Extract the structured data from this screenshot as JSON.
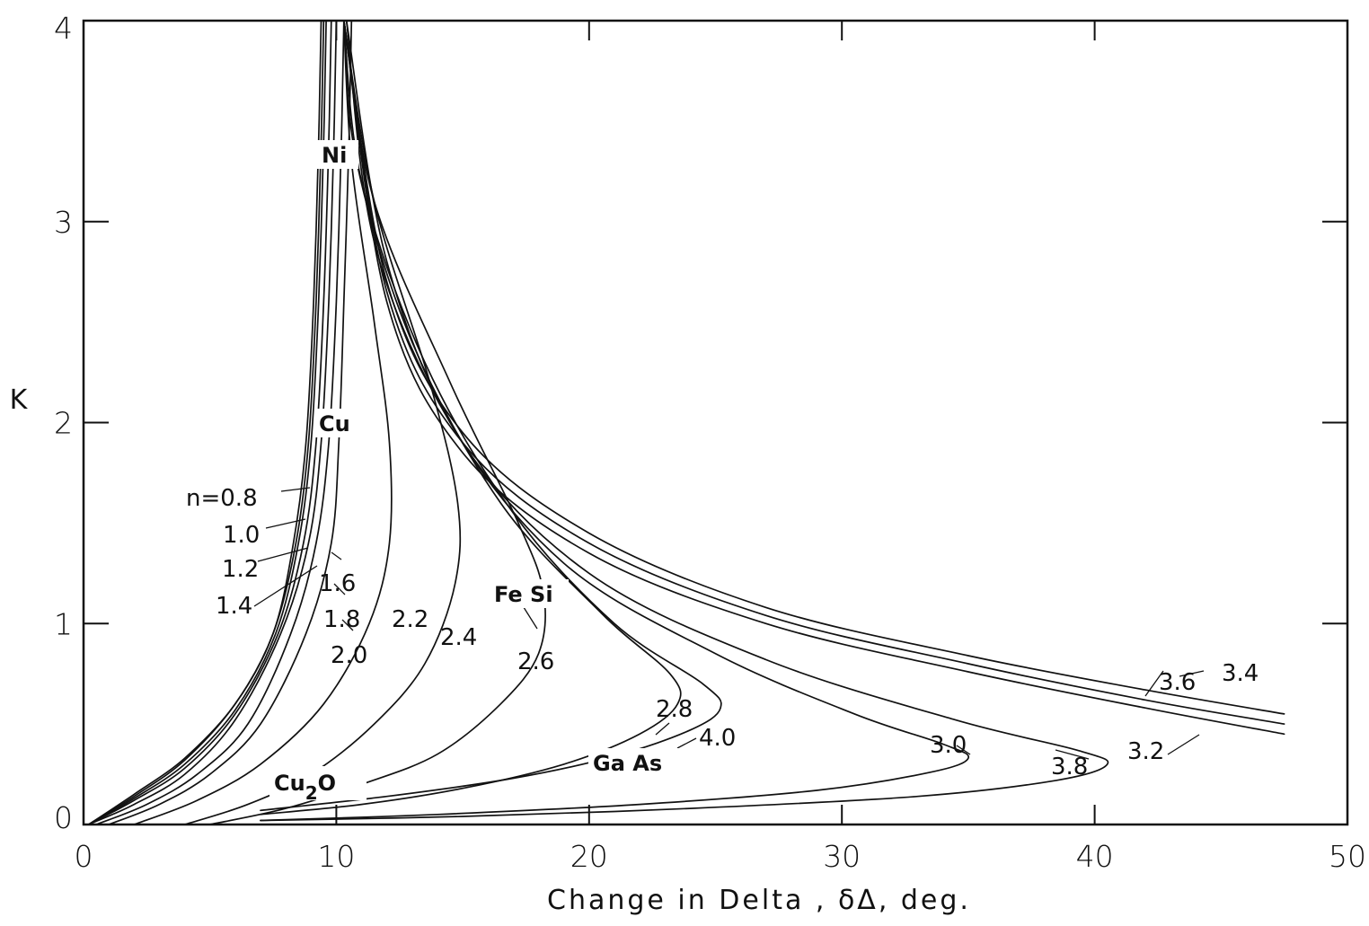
{
  "chart_data": {
    "type": "line",
    "title": "",
    "xlabel": "Change in Delta , δΔ, deg.",
    "ylabel": "K",
    "xlim": [
      0,
      50
    ],
    "ylim": [
      0,
      4
    ],
    "xticks": [
      "0",
      "10",
      "20",
      "30",
      "40",
      "50"
    ],
    "yticks": [
      "0",
      "1",
      "2",
      "3",
      "4"
    ],
    "grid": false,
    "legend": "none",
    "series": [
      {
        "name": "n=0.8",
        "points": [
          [
            0.2,
            0.0
          ],
          [
            2,
            0.15
          ],
          [
            4,
            0.33
          ],
          [
            6,
            0.6
          ],
          [
            7.5,
            0.95
          ],
          [
            8.3,
            1.4
          ],
          [
            8.8,
            1.9
          ],
          [
            9.1,
            2.6
          ],
          [
            9.3,
            3.4
          ],
          [
            9.4,
            4.0
          ]
        ]
      },
      {
        "name": "1.0",
        "points": [
          [
            0.2,
            0.0
          ],
          [
            2,
            0.14
          ],
          [
            4,
            0.32
          ],
          [
            6,
            0.6
          ],
          [
            7.5,
            0.95
          ],
          [
            8.4,
            1.4
          ],
          [
            8.9,
            1.9
          ],
          [
            9.2,
            2.6
          ],
          [
            9.4,
            3.4
          ],
          [
            9.5,
            4.0
          ]
        ]
      },
      {
        "name": "1.2",
        "points": [
          [
            0.2,
            0.0
          ],
          [
            2,
            0.13
          ],
          [
            4,
            0.3
          ],
          [
            6,
            0.57
          ],
          [
            7.6,
            0.95
          ],
          [
            8.5,
            1.4
          ],
          [
            9.0,
            1.9
          ],
          [
            9.3,
            2.6
          ],
          [
            9.5,
            3.4
          ],
          [
            9.6,
            4.0
          ]
        ]
      },
      {
        "name": "1.4",
        "points": [
          [
            0.2,
            0.0
          ],
          [
            2,
            0.12
          ],
          [
            4,
            0.28
          ],
          [
            6,
            0.55
          ],
          [
            7.7,
            0.95
          ],
          [
            8.7,
            1.4
          ],
          [
            9.2,
            1.9
          ],
          [
            9.5,
            2.6
          ],
          [
            9.7,
            3.4
          ],
          [
            9.8,
            4.0
          ]
        ]
      },
      {
        "name": "1.6",
        "points": [
          [
            0.2,
            0.0
          ],
          [
            2,
            0.1
          ],
          [
            4,
            0.25
          ],
          [
            6,
            0.52
          ],
          [
            7.8,
            0.95
          ],
          [
            8.9,
            1.4
          ],
          [
            9.4,
            1.9
          ],
          [
            9.7,
            2.6
          ],
          [
            9.9,
            3.4
          ],
          [
            10.0,
            4.0
          ]
        ]
      },
      {
        "name": "1.8",
        "points": [
          [
            0.5,
            0.0
          ],
          [
            2.5,
            0.1
          ],
          [
            4.5,
            0.25
          ],
          [
            6.5,
            0.5
          ],
          [
            8.2,
            0.95
          ],
          [
            9.2,
            1.4
          ],
          [
            9.7,
            1.9
          ],
          [
            10.0,
            2.6
          ],
          [
            10.2,
            3.4
          ],
          [
            10.3,
            4.0
          ]
        ]
      },
      {
        "name": "2.0",
        "points": [
          [
            1.0,
            0.0
          ],
          [
            3,
            0.1
          ],
          [
            5,
            0.25
          ],
          [
            7,
            0.5
          ],
          [
            8.8,
            0.95
          ],
          [
            9.8,
            1.4
          ],
          [
            10.1,
            1.9
          ],
          [
            10.3,
            2.6
          ],
          [
            10.5,
            3.4
          ],
          [
            10.6,
            4.0
          ]
        ]
      },
      {
        "name": "2.2",
        "points": [
          [
            2.0,
            0.0
          ],
          [
            4.5,
            0.12
          ],
          [
            7,
            0.3
          ],
          [
            9.5,
            0.6
          ],
          [
            11.3,
            1.0
          ],
          [
            12.1,
            1.4
          ],
          [
            12.1,
            1.9
          ],
          [
            11.5,
            2.5
          ],
          [
            10.6,
            3.3
          ],
          [
            10.3,
            4.0
          ]
        ]
      },
      {
        "name": "2.4",
        "points": [
          [
            4.0,
            0.0
          ],
          [
            6.5,
            0.1
          ],
          [
            9,
            0.25
          ],
          [
            11.5,
            0.5
          ],
          [
            13.5,
            0.8
          ],
          [
            14.7,
            1.2
          ],
          [
            14.8,
            1.6
          ],
          [
            13.7,
            2.2
          ],
          [
            11.5,
            3.1
          ],
          [
            10.3,
            4.0
          ]
        ]
      },
      {
        "name": "2.6",
        "points": [
          [
            5.0,
            0.0
          ],
          [
            8,
            0.08
          ],
          [
            11,
            0.2
          ],
          [
            14,
            0.35
          ],
          [
            16.5,
            0.6
          ],
          [
            18,
            0.85
          ],
          [
            18.2,
            1.15
          ],
          [
            17.2,
            1.5
          ],
          [
            14.5,
            2.2
          ],
          [
            11.5,
            3.1
          ],
          [
            10.3,
            4.0
          ]
        ]
      },
      {
        "name": "2.8",
        "points": [
          [
            7.0,
            0.05
          ],
          [
            11,
            0.1
          ],
          [
            15,
            0.18
          ],
          [
            19,
            0.3
          ],
          [
            22,
            0.45
          ],
          [
            23.5,
            0.6
          ],
          [
            23.2,
            0.75
          ],
          [
            20.5,
            1.05
          ],
          [
            16.5,
            1.6
          ],
          [
            13,
            2.4
          ],
          [
            10.8,
            3.3
          ],
          [
            10.3,
            4.0
          ]
        ]
      },
      {
        "name": "3.0",
        "points": [
          [
            7.0,
            0.02
          ],
          [
            14,
            0.05
          ],
          [
            22,
            0.1
          ],
          [
            29,
            0.17
          ],
          [
            33.5,
            0.26
          ],
          [
            35,
            0.33
          ],
          [
            34,
            0.4
          ],
          [
            30.5,
            0.55
          ],
          [
            25,
            0.85
          ],
          [
            19,
            1.3
          ],
          [
            14.5,
            2.0
          ],
          [
            11.5,
            2.9
          ],
          [
            10.4,
            4.0
          ]
        ]
      },
      {
        "name": "3.2",
        "points": [
          [
            10.3,
            4.0
          ],
          [
            12,
            2.6
          ],
          [
            15,
            1.85
          ],
          [
            20,
            1.35
          ],
          [
            27,
            1.0
          ],
          [
            35,
            0.76
          ],
          [
            42,
            0.58
          ],
          [
            47.5,
            0.45
          ]
        ]
      },
      {
        "name": "3.4",
        "points": [
          [
            10.3,
            4.0
          ],
          [
            12,
            2.65
          ],
          [
            15,
            1.9
          ],
          [
            20,
            1.4
          ],
          [
            27,
            1.04
          ],
          [
            35,
            0.8
          ],
          [
            42,
            0.62
          ],
          [
            47.5,
            0.5
          ]
        ]
      },
      {
        "name": "3.6",
        "points": [
          [
            10.3,
            4.0
          ],
          [
            12,
            2.7
          ],
          [
            15,
            1.95
          ],
          [
            20,
            1.45
          ],
          [
            27,
            1.08
          ],
          [
            35,
            0.84
          ],
          [
            42,
            0.67
          ],
          [
            47.5,
            0.55
          ]
        ]
      },
      {
        "name": "3.8",
        "points": [
          [
            7.0,
            0.02
          ],
          [
            15,
            0.04
          ],
          [
            24,
            0.08
          ],
          [
            33,
            0.14
          ],
          [
            38.5,
            0.22
          ],
          [
            40.5,
            0.3
          ],
          [
            39.3,
            0.37
          ],
          [
            34.5,
            0.52
          ],
          [
            27,
            0.82
          ],
          [
            20,
            1.25
          ],
          [
            15,
            1.9
          ],
          [
            12,
            2.8
          ],
          [
            10.4,
            4.0
          ]
        ]
      },
      {
        "name": "4.0",
        "points": [
          [
            7.0,
            0.07
          ],
          [
            12,
            0.14
          ],
          [
            17,
            0.23
          ],
          [
            21,
            0.34
          ],
          [
            24,
            0.47
          ],
          [
            25.2,
            0.58
          ],
          [
            24.5,
            0.7
          ],
          [
            21,
            1.0
          ],
          [
            17,
            1.55
          ],
          [
            13.5,
            2.3
          ],
          [
            11,
            3.2
          ],
          [
            10.3,
            4.0
          ]
        ]
      }
    ],
    "annotations": [
      "Ni",
      "Cu",
      "Fe Si",
      "Cu₂O",
      "Ga As"
    ]
  },
  "labels": {
    "n08": "n=0.8",
    "n10": "1.0",
    "n12": "1.2",
    "n14": "1.4",
    "n16": "1.6",
    "n18": "1.8",
    "n20": "2.0",
    "n22": "2.2",
    "n24": "2.4",
    "n26": "2.6",
    "n28": "2.8",
    "n30": "3.0",
    "n32": "3.2",
    "n34": "3.4",
    "n36": "3.6",
    "n38": "3.8",
    "n40": "4.0"
  },
  "materials": {
    "ni": "Ni",
    "cu": "Cu",
    "fesi": "Fe Si",
    "cu2o_a": "Cu",
    "cu2o_b": "2",
    "cu2o_c": "O",
    "gaas": "Ga As"
  }
}
